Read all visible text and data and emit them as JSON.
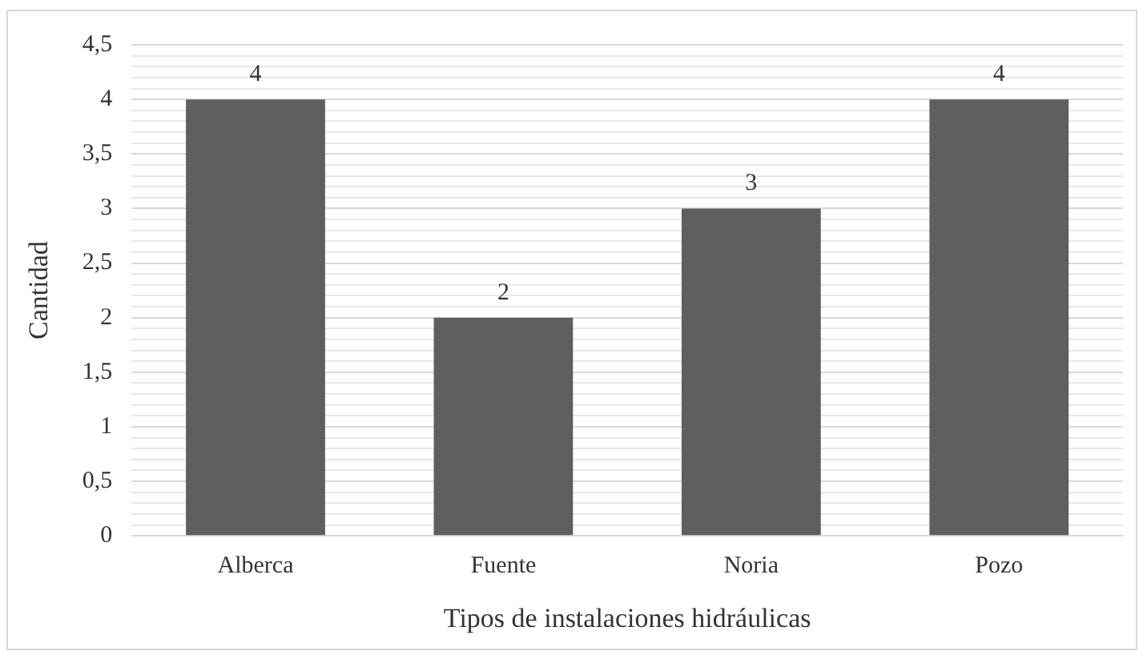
{
  "chart_data": {
    "type": "bar",
    "xlabel": "Tipos de instalaciones hidráulicas",
    "ylabel": "Cantidad",
    "categories": [
      "Alberca",
      "Fuente",
      "Noria",
      "Pozo"
    ],
    "values": [
      4,
      2,
      3,
      4
    ],
    "color": "#5f5f5f",
    "ylim": [
      0,
      4.5
    ],
    "yticks": [
      {
        "value": 0,
        "label": "0"
      },
      {
        "value": 0.1,
        "label": null
      },
      {
        "value": 0.2,
        "label": null
      },
      {
        "value": 0.3,
        "label": null
      },
      {
        "value": 0.4,
        "label": null
      },
      {
        "value": 0.5,
        "label": "0,5"
      },
      {
        "value": 0.6,
        "label": null
      },
      {
        "value": 0.7,
        "label": null
      },
      {
        "value": 0.8,
        "label": null
      },
      {
        "value": 0.9,
        "label": null
      },
      {
        "value": 1,
        "label": "1"
      },
      {
        "value": 1.1,
        "label": null
      },
      {
        "value": 1.2,
        "label": null
      },
      {
        "value": 1.3,
        "label": null
      },
      {
        "value": 1.4,
        "label": null
      },
      {
        "value": 1.5,
        "label": "1,5"
      },
      {
        "value": 1.6,
        "label": null
      },
      {
        "value": 1.7,
        "label": null
      },
      {
        "value": 1.8,
        "label": null
      },
      {
        "value": 1.9,
        "label": null
      },
      {
        "value": 2,
        "label": "2"
      },
      {
        "value": 2.1,
        "label": null
      },
      {
        "value": 2.2,
        "label": null
      },
      {
        "value": 2.3,
        "label": null
      },
      {
        "value": 2.4,
        "label": null
      },
      {
        "value": 2.5,
        "label": "2,5"
      },
      {
        "value": 2.6,
        "label": null
      },
      {
        "value": 2.7,
        "label": null
      },
      {
        "value": 2.8,
        "label": null
      },
      {
        "value": 2.9,
        "label": null
      },
      {
        "value": 3,
        "label": "3"
      },
      {
        "value": 3.1,
        "label": null
      },
      {
        "value": 3.2,
        "label": null
      },
      {
        "value": 3.3,
        "label": null
      },
      {
        "value": 3.4,
        "label": null
      },
      {
        "value": 3.5,
        "label": "3,5"
      },
      {
        "value": 3.6,
        "label": null
      },
      {
        "value": 3.7,
        "label": null
      },
      {
        "value": 3.8,
        "label": null
      },
      {
        "value": 3.9,
        "label": null
      },
      {
        "value": 4,
        "label": "4"
      },
      {
        "value": 4.1,
        "label": null
      },
      {
        "value": 4.2,
        "label": null
      },
      {
        "value": 4.3,
        "label": null
      },
      {
        "value": 4.4,
        "label": null
      },
      {
        "value": 4.5,
        "label": "4,5"
      }
    ],
    "grid": "y",
    "data_labels": true,
    "legend": false
  }
}
